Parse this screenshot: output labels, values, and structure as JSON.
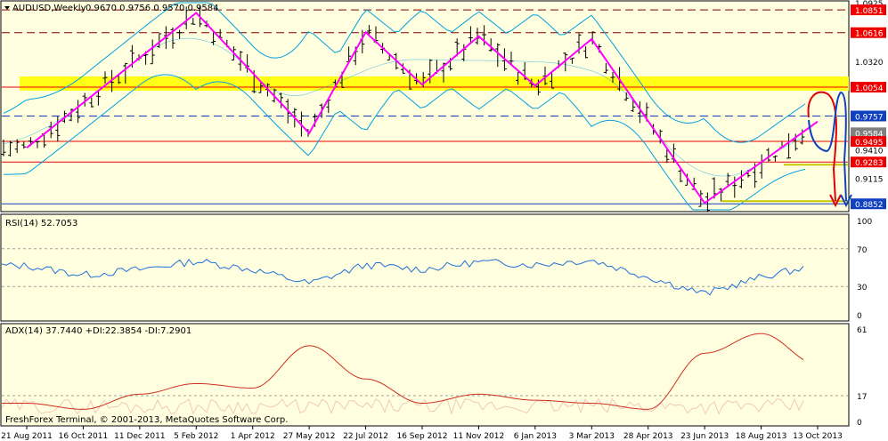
{
  "main": {
    "header": "AUDUSD,Weekly",
    "ohlc": "0.9670 0.9756 0.9570 0.9584",
    "price_ticks": [
      "1.0925",
      "1.0851",
      "1.0616",
      "1.0320",
      "1.0054",
      "0.9757",
      "0.9584",
      "0.9495",
      "0.9410",
      "0.9283",
      "0.9115",
      "0.8852"
    ]
  },
  "rsi": {
    "header": "RSI(14) 52.7053",
    "ticks": [
      "100",
      "70",
      "30",
      "0"
    ]
  },
  "adx": {
    "header": "ADX(14) 37.7440 +DI:22.3854 -DI:7.2901",
    "ticks": [
      "61",
      "17",
      "0"
    ]
  },
  "footer": "FreshForex Terminal, © 2001-2013, MetaQuotes Software Corp.",
  "dates": [
    "21 Aug 2011",
    "16 Oct 2011",
    "11 Dec 2011",
    "5 Feb 2012",
    "1 Apr 2012",
    "27 May 2012",
    "22 Jul 2012",
    "16 Sep 2012",
    "11 Nov 2012",
    "6 Jan 2013",
    "3 Mar 2013",
    "28 Apr 2013",
    "23 Jun 2013",
    "18 Aug 2013",
    "13 Oct 2013"
  ],
  "colors": {
    "background": "#ffffe0",
    "price_line": "#ff00ff",
    "bollinger": "#00a0e0",
    "rsi_line": "#1e6fd9",
    "adx_line": "#d03020",
    "support_band": "#ffff00",
    "label_red": "#ee0000",
    "label_blue": "#1040c0",
    "label_gray": "#808080"
  },
  "chart_data": [
    {
      "type": "line",
      "title": "AUDUSD,Weekly",
      "series": [
        {
          "name": "zigzag",
          "x": [
            "21 Aug 2011",
            "5 Feb 2012",
            "27 May 2012",
            "22 Jul 2012",
            "16 Sep 2012",
            "11 Nov 2012",
            "6 Jan 2013",
            "3 Mar 2013",
            "23 Jun 2013",
            "13 Oct 2013"
          ],
          "values": [
            0.943,
            1.082,
            0.958,
            1.062,
            1.008,
            1.058,
            1.007,
            1.055,
            0.886,
            0.97
          ]
        }
      ],
      "levels": [
        {
          "value": 1.0851,
          "style": "dashed",
          "color": "#800000"
        },
        {
          "value": 1.0616,
          "style": "dashed",
          "color": "#800000"
        },
        {
          "value": 1.0054,
          "style": "solid",
          "color": "#ee0000"
        },
        {
          "value": 0.9757,
          "style": "dashed",
          "color": "#1040c0"
        },
        {
          "value": 0.9495,
          "style": "solid",
          "color": "#ee0000"
        },
        {
          "value": 0.9283,
          "style": "solid",
          "color": "#ee0000"
        },
        {
          "value": 0.8852,
          "style": "solid",
          "color": "#1040c0"
        }
      ],
      "ylim": [
        0.879,
        1.0925
      ]
    },
    {
      "type": "line",
      "title": "RSI(14) 52.7053",
      "series": [
        {
          "name": "RSI",
          "x": [
            "21 Aug 2011",
            "16 Oct 2011",
            "11 Dec 2011",
            "5 Feb 2012",
            "1 Apr 2012",
            "27 May 2012",
            "22 Jul 2012",
            "16 Sep 2012",
            "11 Nov 2012",
            "6 Jan 2013",
            "3 Mar 2013",
            "28 Apr 2013",
            "23 Jun 2013",
            "18 Aug 2013",
            "13 Oct 2013"
          ],
          "values": [
            52,
            42,
            48,
            57,
            48,
            33,
            53,
            48,
            56,
            53,
            58,
            40,
            22,
            40,
            52.7
          ]
        }
      ],
      "levels": [
        70,
        30
      ],
      "ylim": [
        0,
        100
      ]
    },
    {
      "type": "line",
      "title": "ADX(14) 37.7440 +DI:22.3854 -DI:7.2901",
      "series": [
        {
          "name": "ADX",
          "x": [
            "21 Aug 2011",
            "16 Oct 2011",
            "11 Dec 2011",
            "5 Feb 2012",
            "1 Apr 2012",
            "27 May 2012",
            "22 Jul 2012",
            "16 Sep 2012",
            "11 Nov 2012",
            "6 Jan 2013",
            "3 Mar 2013",
            "28 Apr 2013",
            "23 Jun 2013",
            "18 Aug 2013",
            "13 Oct 2013"
          ],
          "values": [
            12,
            8,
            18,
            25,
            22,
            50,
            28,
            12,
            18,
            14,
            12,
            8,
            45,
            58,
            37.7
          ]
        }
      ],
      "levels": [
        17
      ],
      "ylim": [
        0,
        61
      ]
    }
  ]
}
